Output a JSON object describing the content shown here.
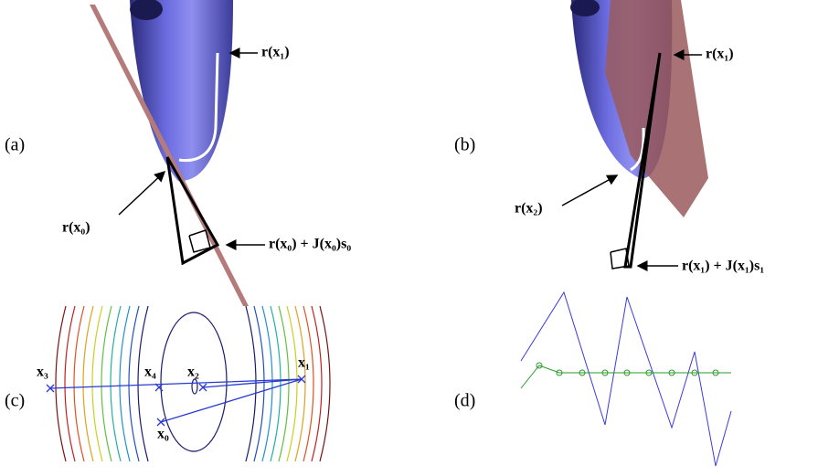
{
  "panel_labels": {
    "a": "(a)",
    "b": "(b)",
    "c": "(c)",
    "d": "(d)"
  },
  "panel_a": {
    "annotations": [
      "r(x₁)",
      "r(x₀)",
      "r(x₀) + J(x₀)s₀"
    ]
  },
  "panel_b": {
    "annotations": [
      "r(x₁)",
      "r(x₂)",
      "r(x₁) + J(x₁)s₁"
    ]
  },
  "panel_c": {
    "points": [
      "x₃",
      "x₄",
      "x₂",
      "x₁",
      "x₀"
    ]
  }
}
